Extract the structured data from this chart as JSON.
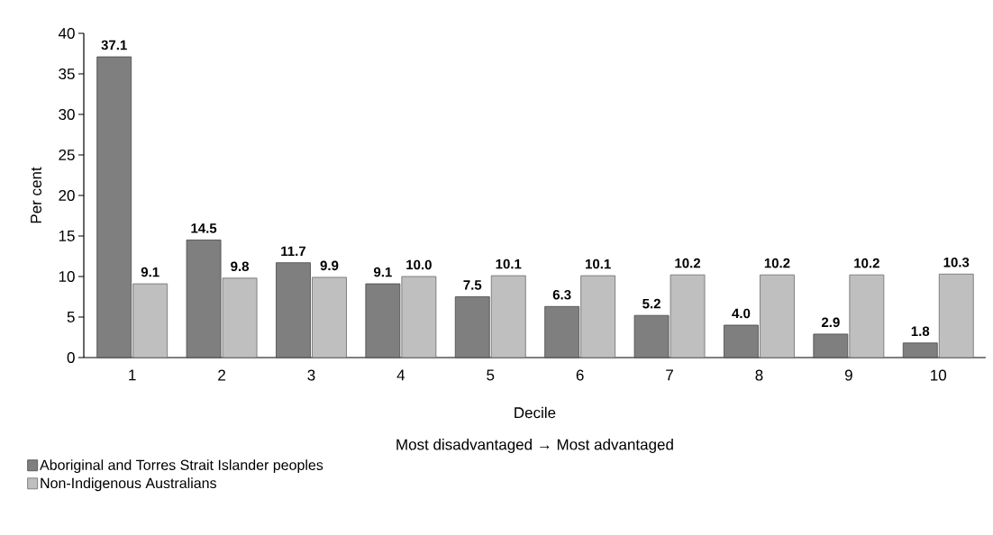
{
  "chart_data": {
    "type": "bar",
    "xlabel": "Decile",
    "ylabel": "Per cent",
    "annotations": [
      "Most disadvantaged → Most advantaged"
    ],
    "categories": [
      "1",
      "2",
      "3",
      "4",
      "5",
      "6",
      "7",
      "8",
      "9",
      "10"
    ],
    "series": [
      {
        "name": "Aboriginal and Torres Strait Islander peoples",
        "color": "#7f7f7f",
        "values": [
          37.1,
          14.5,
          11.7,
          9.1,
          7.5,
          6.3,
          5.2,
          4.0,
          2.9,
          1.8
        ],
        "value_labels": [
          "37.1",
          "14.5",
          "11.7",
          "9.1",
          "7.5",
          "6.3",
          "5.2",
          "4.0",
          "2.9",
          "1.8"
        ]
      },
      {
        "name": "Non-Indigenous Australians",
        "color": "#bfbfbf",
        "values": [
          9.1,
          9.8,
          9.9,
          10.0,
          10.1,
          10.1,
          10.2,
          10.2,
          10.2,
          10.3
        ],
        "value_labels": [
          "9.1",
          "9.8",
          "9.9",
          "10.0",
          "10.1",
          "10.1",
          "10.2",
          "10.2",
          "10.2",
          "10.3"
        ]
      }
    ],
    "ylim": [
      0,
      40
    ],
    "yticks": [
      0,
      5,
      10,
      15,
      20,
      25,
      30,
      35,
      40
    ],
    "legend": "bottom left"
  }
}
